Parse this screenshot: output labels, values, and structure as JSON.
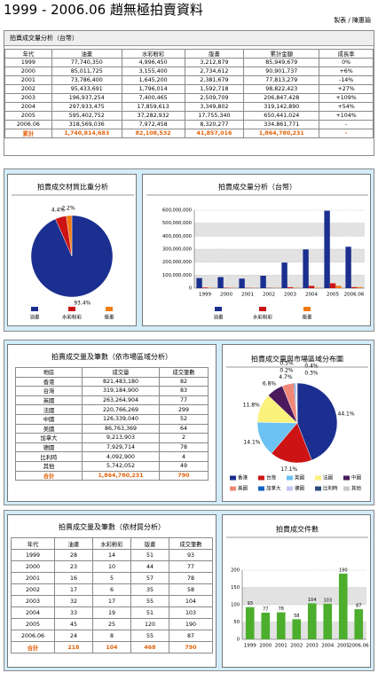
{
  "header": {
    "title": "1999 - 2006.06 趙無極拍賣資料",
    "author": "製表 / 陳惠瑜"
  },
  "table_sales": {
    "title": "拍賣成交量分析（台幣）",
    "columns": [
      "年代",
      "油畫",
      "水彩粉彩",
      "版畫",
      "累計金額",
      "成長率"
    ],
    "rows": [
      [
        "1999",
        "77,740,350",
        "4,996,450",
        "3,212,879",
        "85,949,679",
        "0%"
      ],
      [
        "2000",
        "85,011,725",
        "3,155,400",
        "2,734,612",
        "90,901,737",
        "+6%"
      ],
      [
        "2001",
        "73,786,400",
        "1,645,200",
        "2,381,679",
        "77,813,279",
        "-14%"
      ],
      [
        "2002",
        "95,433,691",
        "1,796,014",
        "1,592,718",
        "98,822,423",
        "+27%"
      ],
      [
        "2003",
        "196,937,254",
        "7,400,465",
        "2,509,709",
        "206,847,428",
        "+109%"
      ],
      [
        "2004",
        "297,933,475",
        "17,859,613",
        "3,349,802",
        "319,142,890",
        "+54%"
      ],
      [
        "2005",
        "595,402,752",
        "37,282,932",
        "17,755,340",
        "650,441,024",
        "+104%"
      ],
      [
        "2006.06",
        "318,569,036",
        "7,972,458",
        "8,320,277",
        "334,861,771",
        "-"
      ]
    ],
    "total": [
      "累計",
      "1,740,814,683",
      "82,108,532",
      "41,857,016",
      "1,864,780,231",
      "-"
    ]
  },
  "table_region": {
    "title": "拍賣成交量及筆數（依市場區域分析）",
    "columns": [
      "地區",
      "成交量",
      "成交筆數"
    ],
    "rows": [
      [
        "香港",
        "821,483,180",
        "82"
      ],
      [
        "台灣",
        "319,184,900",
        "83"
      ],
      [
        "英國",
        "263,264,904",
        "77"
      ],
      [
        "法國",
        "220,766,269",
        "299"
      ],
      [
        "中國",
        "126,339,040",
        "52"
      ],
      [
        "美國",
        "86,763,369",
        "64"
      ],
      [
        "加拿大",
        "9,213,903",
        "2"
      ],
      [
        "德國",
        "7,929,714",
        "78"
      ],
      [
        "比利時",
        "4,092,900",
        "4"
      ],
      [
        "其他",
        "5,742,052",
        "49"
      ]
    ],
    "total": [
      "合計",
      "1,864,780,231",
      "790"
    ]
  },
  "table_count": {
    "title": "拍賣成交量及筆數（依材質分析）",
    "columns": [
      "年代",
      "油畫",
      "水彩粉彩",
      "版畫",
      "成交筆數"
    ],
    "rows": [
      [
        "1999",
        "28",
        "14",
        "51",
        "93"
      ],
      [
        "2000",
        "23",
        "10",
        "44",
        "77"
      ],
      [
        "2001",
        "16",
        "5",
        "57",
        "78"
      ],
      [
        "2002",
        "17",
        "6",
        "35",
        "58"
      ],
      [
        "2003",
        "32",
        "17",
        "55",
        "104"
      ],
      [
        "2004",
        "33",
        "19",
        "51",
        "103"
      ],
      [
        "2005",
        "45",
        "25",
        "120",
        "190"
      ],
      [
        "2006.06",
        "24",
        "8",
        "55",
        "87"
      ]
    ],
    "total": [
      "合計",
      "218",
      "104",
      "468",
      "790"
    ]
  },
  "chart_data": [
    {
      "type": "pie",
      "title": "拍賣成交材質比重分析",
      "categories": [
        "油畫",
        "水彩粉彩",
        "版畫"
      ],
      "values": [
        93.4,
        4.4,
        2.2
      ],
      "value_labels": [
        "93.4%",
        "4.4%",
        "2.2%"
      ],
      "colors": [
        "#1a2f8f",
        "#cc1414",
        "#f07a12"
      ]
    },
    {
      "type": "bar",
      "title": "拍賣成交量分析（台幣）",
      "categories": [
        "1999",
        "2000",
        "2001",
        "2002",
        "2003",
        "2004",
        "2005",
        "2006.06"
      ],
      "series": [
        {
          "name": "油畫",
          "color": "#1a2f8f",
          "values": [
            77740350,
            85011725,
            73786400,
            95433691,
            196937254,
            297933475,
            595402752,
            318569036
          ]
        },
        {
          "name": "水彩粉彩",
          "color": "#cc1414",
          "values": [
            4996450,
            3155400,
            1645200,
            1796014,
            7400465,
            17859613,
            37282932,
            7972458
          ]
        },
        {
          "name": "版畫",
          "color": "#f07a12",
          "values": [
            3212879,
            2734612,
            2381679,
            1592718,
            2509709,
            3349802,
            17755340,
            8320277
          ]
        }
      ],
      "ylim": [
        0,
        600000000
      ],
      "yticks": [
        0,
        {
          "value": 100000000,
          "label": "100,000,000"
        },
        {
          "value": 200000000,
          "label": "200,000,000"
        },
        {
          "value": 300000000,
          "label": "300,000,000"
        },
        {
          "value": 400000000,
          "label": "400,000,000"
        },
        {
          "value": 500000000,
          "label": "500,000,000"
        },
        {
          "value": 600000000,
          "label": "600,000,000"
        }
      ],
      "grid": true
    },
    {
      "type": "pie",
      "title": "拍賣成交量與市場區域分布圖",
      "categories": [
        "香港",
        "台灣",
        "英國",
        "法國",
        "中國",
        "美國",
        "加拿大",
        "德國",
        "比利時",
        "其他"
      ],
      "values": [
        44.1,
        17.1,
        14.1,
        11.8,
        6.8,
        4.7,
        0.5,
        0.4,
        0.2,
        0.3
      ],
      "value_labels": [
        "44.1%",
        "17.1%",
        "14.1%",
        "11.8%",
        "6.8%",
        "4.7%",
        "0.5%",
        "0.4%",
        "0.2%",
        "0.3%"
      ],
      "colors": [
        "#1a2f8f",
        "#cc1414",
        "#6cc2f2",
        "#fbf27c",
        "#4a1a5c",
        "#f08878",
        "#1263c4",
        "#c4c4f2",
        "#2e4b7a",
        "#c9c9c9"
      ]
    },
    {
      "type": "bar",
      "title": "拍賣成交件數",
      "categories": [
        "1999",
        "2000",
        "2001",
        "2002",
        "2003",
        "2004",
        "2005",
        "2006.06"
      ],
      "values": [
        93,
        77,
        78,
        58,
        104,
        103,
        190,
        87
      ],
      "color": "#4cae2c",
      "ylim": [
        0,
        200
      ],
      "yticks": [
        0,
        50,
        100,
        150,
        200
      ],
      "grid": true,
      "data_labels": true
    }
  ]
}
